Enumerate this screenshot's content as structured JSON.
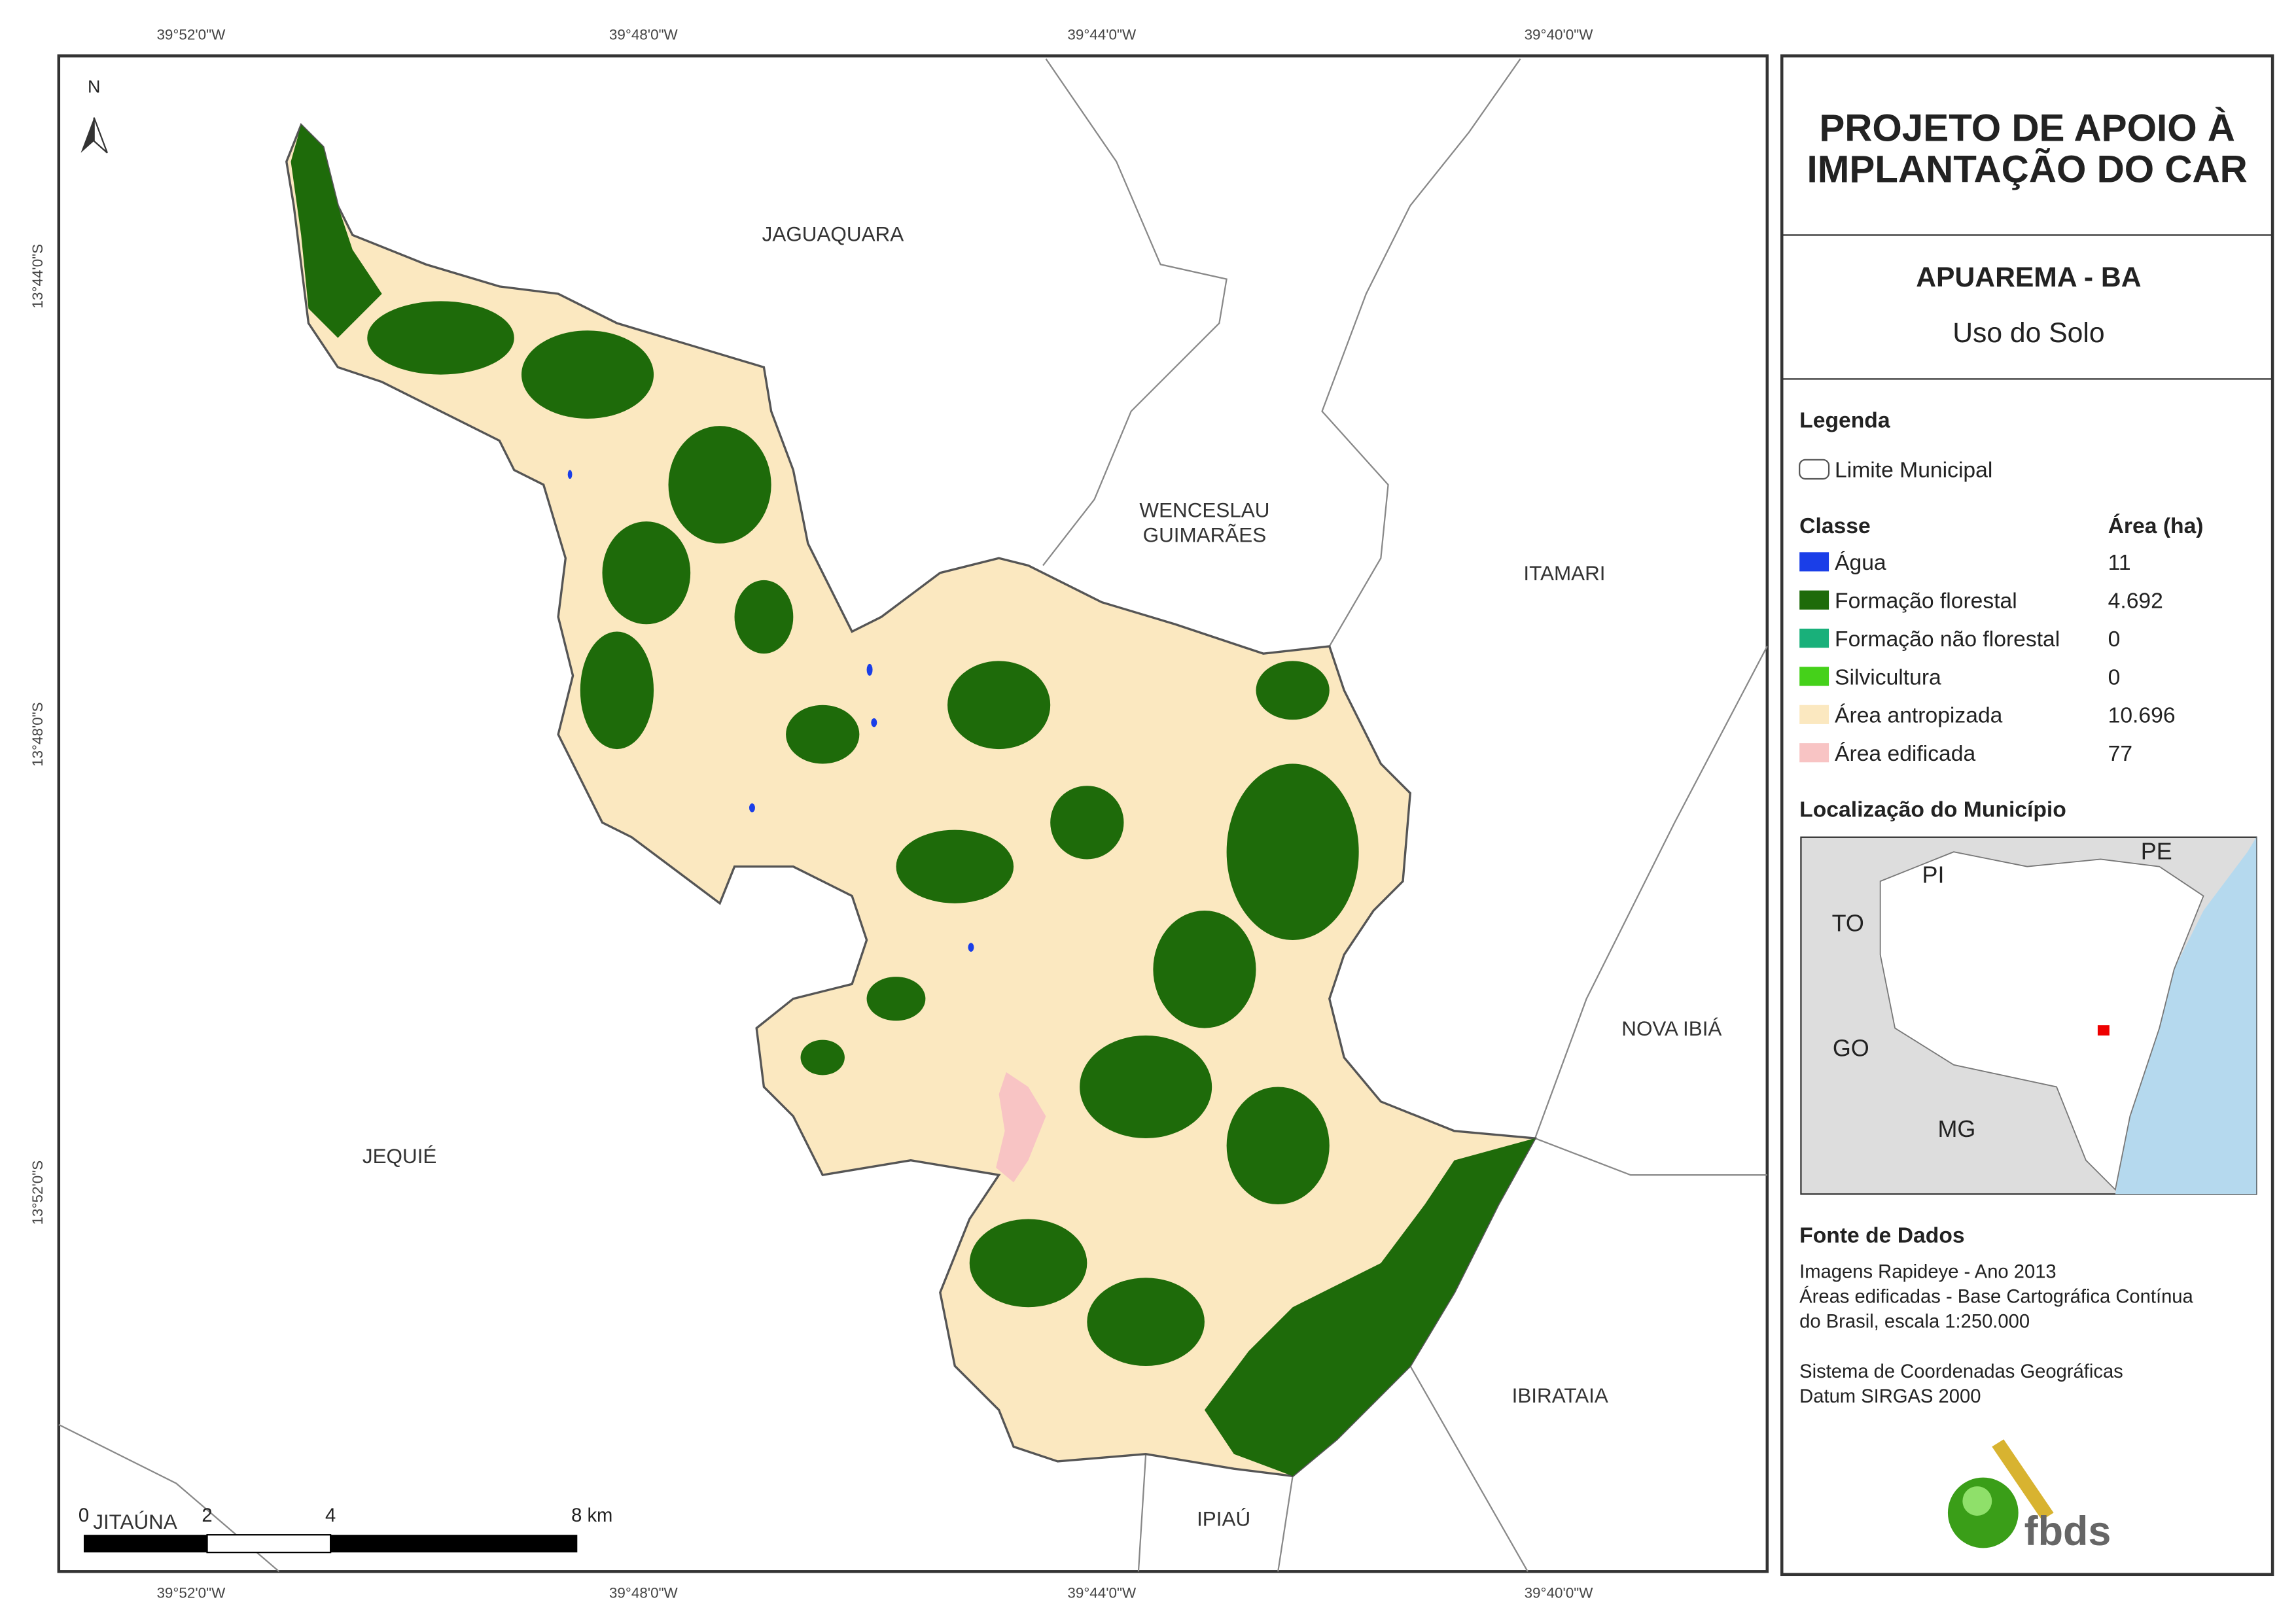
{
  "map": {
    "coordinates": {
      "top": [
        "39°52'0\"W",
        "39°48'0\"W",
        "39°44'0\"W",
        "39°40'0\"W"
      ],
      "bottom": [
        "39°52'0\"W",
        "39°48'0\"W",
        "39°44'0\"W",
        "39°40'0\"W"
      ],
      "left": [
        "13°44'0\"S",
        "13°48'0\"S",
        "13°52'0\"S"
      ]
    },
    "north": "N",
    "places": [
      "JAGUAQUARA",
      "WENCESLAU",
      "GUIMARÃES",
      "ITAMARI",
      "NOVA IBIÁ",
      "JEQUIÉ",
      "IBIRATAIA",
      "IPIAÚ",
      "JITAÚNA"
    ],
    "scale_bar": [
      "0",
      "2",
      "4",
      "8 km"
    ]
  },
  "panel": {
    "title": [
      "PROJETO DE APOIO À",
      "IMPLANTAÇÃO DO CAR"
    ],
    "municipality": "APUAREMA - BA",
    "subtitle": "Uso do Solo",
    "legend": {
      "heading": "Legenda",
      "boundary": "Limite Municipal",
      "class_header": "Classe",
      "area_header": "Área (ha)",
      "rows": [
        [
          "Água",
          "11"
        ],
        [
          "Formação florestal",
          "4.692"
        ],
        [
          "Formação não florestal",
          "0"
        ],
        [
          "Silvicultura",
          "0"
        ],
        [
          "Área antropizada",
          "10.696"
        ],
        [
          "Área edificada",
          "77"
        ]
      ]
    },
    "location": {
      "heading": "Localização do Município",
      "states": [
        "PI",
        "PE",
        "TO",
        "GO",
        "MG"
      ]
    },
    "sources": {
      "heading": "Fonte de Dados",
      "lines": [
        "Imagens Rapideye - Ano 2013",
        "Áreas edificadas - Base Cartográfica Contínua",
        "do Brasil, escala 1:250.000",
        "Sistema de Coordenadas Geográficas",
        "Datum SIRGAS 2000"
      ]
    },
    "logo": "fbds"
  }
}
